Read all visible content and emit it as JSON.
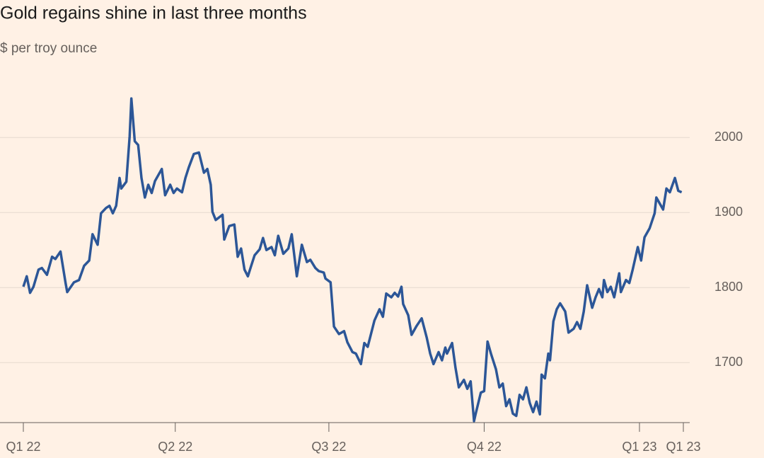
{
  "chart_data": {
    "type": "line",
    "title": "Gold regains shine in last three months",
    "subtitle": "$ per troy ounce",
    "x": [
      0,
      2,
      4,
      6,
      9,
      11,
      14,
      17,
      19,
      22,
      25,
      26,
      30,
      33,
      36,
      39,
      41,
      44,
      46,
      49,
      51,
      53,
      55,
      57,
      58,
      61,
      63,
      64,
      66,
      68,
      70,
      72,
      74,
      76,
      78,
      82,
      84,
      87,
      89,
      91,
      94,
      96,
      98,
      101,
      104,
      107,
      109,
      111,
      112,
      114,
      118,
      119,
      122,
      125,
      127,
      129,
      131,
      133,
      135,
      137,
      140,
      142,
      144,
      147,
      149,
      151,
      154,
      157,
      159,
      162,
      165,
      168,
      170,
      173,
      175,
      178,
      179,
      182,
      184,
      187,
      190,
      192,
      195,
      197,
      200,
      202,
      204,
      208,
      211,
      213,
      215,
      218,
      220,
      222,
      224,
      225,
      228,
      230,
      233,
      236,
      239,
      241,
      243,
      246,
      248,
      250,
      251,
      254,
      256,
      258,
      261,
      263,
      265,
      267,
      268,
      271,
      273,
      275,
      277,
      280,
      282,
      284,
      286,
      288,
      290,
      292,
      294,
      296,
      298,
      300,
      302,
      304,
      306,
      307,
      309,
      311,
      312,
      314,
      316,
      318,
      321,
      323,
      326,
      328,
      330,
      332,
      334,
      337,
      339,
      341,
      343,
      344,
      346,
      348,
      350,
      353,
      354,
      357,
      359,
      361,
      364,
      366,
      368,
      371,
      374,
      375,
      379,
      381,
      383,
      386,
      388,
      390
    ],
    "series": [
      {
        "color": "#2c5697",
        "values": [
          1801,
          1815,
          1793,
          1801,
          1824,
          1826,
          1817,
          1841,
          1838,
          1848,
          1806,
          1794,
          1807,
          1810,
          1829,
          1836,
          1871,
          1857,
          1899,
          1906,
          1909,
          1899,
          1909,
          1946,
          1932,
          1941,
          2002,
          2052,
          1995,
          1990,
          1946,
          1920,
          1937,
          1926,
          1942,
          1958,
          1923,
          1937,
          1926,
          1932,
          1927,
          1946,
          1960,
          1978,
          1980,
          1953,
          1958,
          1937,
          1901,
          1890,
          1897,
          1864,
          1882,
          1884,
          1841,
          1852,
          1824,
          1815,
          1829,
          1843,
          1851,
          1866,
          1850,
          1854,
          1843,
          1869,
          1845,
          1852,
          1871,
          1815,
          1857,
          1834,
          1837,
          1826,
          1822,
          1820,
          1812,
          1807,
          1748,
          1738,
          1742,
          1727,
          1714,
          1712,
          1698,
          1726,
          1721,
          1756,
          1771,
          1761,
          1792,
          1787,
          1793,
          1788,
          1801,
          1778,
          1763,
          1737,
          1749,
          1759,
          1733,
          1712,
          1698,
          1714,
          1703,
          1720,
          1712,
          1726,
          1693,
          1667,
          1677,
          1665,
          1675,
          1622,
          1632,
          1660,
          1662,
          1728,
          1712,
          1691,
          1667,
          1672,
          1642,
          1651,
          1632,
          1629,
          1657,
          1651,
          1667,
          1646,
          1634,
          1648,
          1631,
          1684,
          1679,
          1712,
          1703,
          1755,
          1771,
          1779,
          1768,
          1740,
          1745,
          1754,
          1745,
          1768,
          1803,
          1773,
          1787,
          1798,
          1787,
          1810,
          1794,
          1801,
          1787,
          1819,
          1794,
          1810,
          1806,
          1824,
          1854,
          1836,
          1867,
          1879,
          1899,
          1920,
          1904,
          1932,
          1927,
          1946,
          1929,
          1927
        ]
      }
    ],
    "xlim": [
      0,
      391
    ],
    "xticks": [
      {
        "value": 0,
        "label": "Q1 22"
      },
      {
        "value": 90,
        "label": "Q2 22"
      },
      {
        "value": 181,
        "label": "Q3 22"
      },
      {
        "value": 273,
        "label": "Q4 22"
      },
      {
        "value": 365,
        "label": "Q1 23"
      },
      {
        "value": 391,
        "label": "Q1 23"
      }
    ],
    "ylim": [
      1620,
      2070
    ],
    "yticks": [
      1700,
      1800,
      1900,
      2000
    ],
    "grid": true
  }
}
